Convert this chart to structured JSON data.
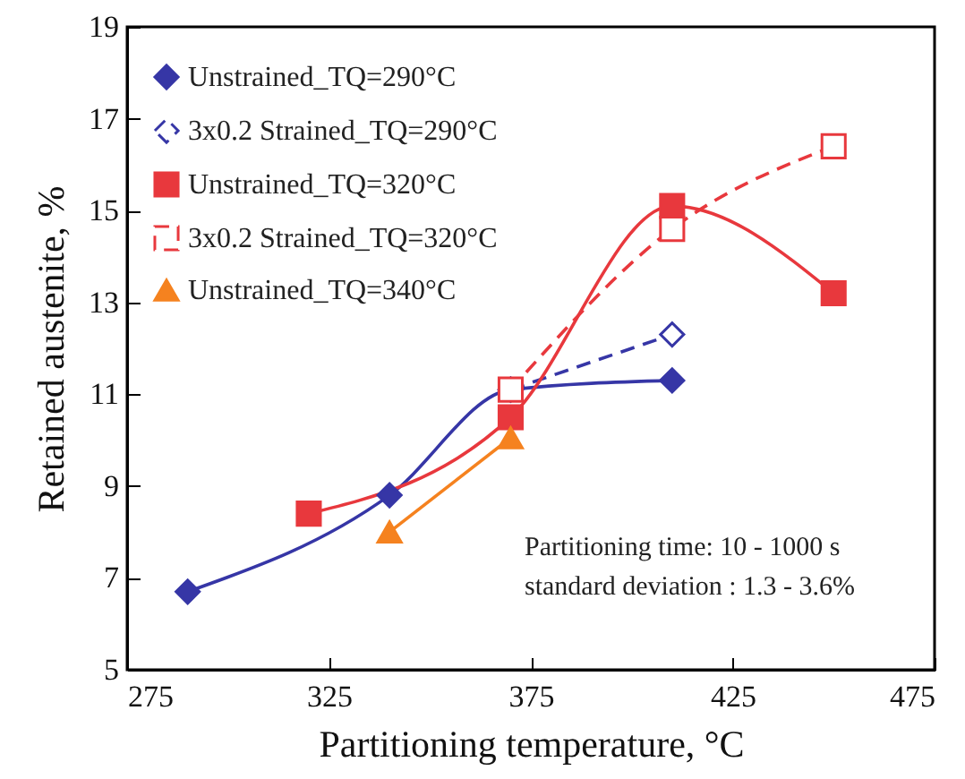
{
  "chart_data": {
    "type": "line",
    "xlabel": "Partitioning temperature, °C",
    "ylabel": "Retained austenite, %",
    "xlim": [
      275,
      475
    ],
    "xticks": [
      275,
      325,
      375,
      425,
      475
    ],
    "ylim": [
      5,
      19
    ],
    "yticks": [
      5,
      7,
      9,
      11,
      13,
      15,
      17,
      19
    ],
    "legend": "top left",
    "grid": false,
    "series": [
      {
        "name": "Unstrained_TQ=290°C",
        "color": "#3636a6",
        "marker": "diamond",
        "line_style": "solid",
        "x": [
          290,
          340,
          370,
          410
        ],
        "values": [
          6.7,
          8.8,
          11.1,
          11.3
        ]
      },
      {
        "name": "3x0.2 Strained_TQ=290°C",
        "color": "#3636a6",
        "marker": "diamond",
        "line_style": "dashed",
        "x": [
          370,
          410
        ],
        "values": [
          11.1,
          12.3
        ]
      },
      {
        "name": "Unstrained_TQ=320°C",
        "color": "#e8383d",
        "marker": "square",
        "line_style": "solid",
        "x": [
          320,
          370,
          410,
          450
        ],
        "values": [
          8.4,
          10.5,
          15.1,
          13.2
        ]
      },
      {
        "name": "3x0.2 Strained_TQ=320°C",
        "color": "#e8383d",
        "marker": "square",
        "line_style": "dashed",
        "x": [
          370,
          410,
          450
        ],
        "values": [
          11.1,
          14.6,
          16.4
        ]
      },
      {
        "name": "Unstrained_TQ=340°C",
        "color": "#f5821f",
        "marker": "triangle",
        "line_style": "solid",
        "x": [
          340,
          370
        ],
        "values": [
          8.0,
          10.05
        ]
      }
    ],
    "annotations": [
      "Partitioning time: 10 - 1000 s",
      "standard deviation : 1.3 - 3.6%"
    ]
  }
}
